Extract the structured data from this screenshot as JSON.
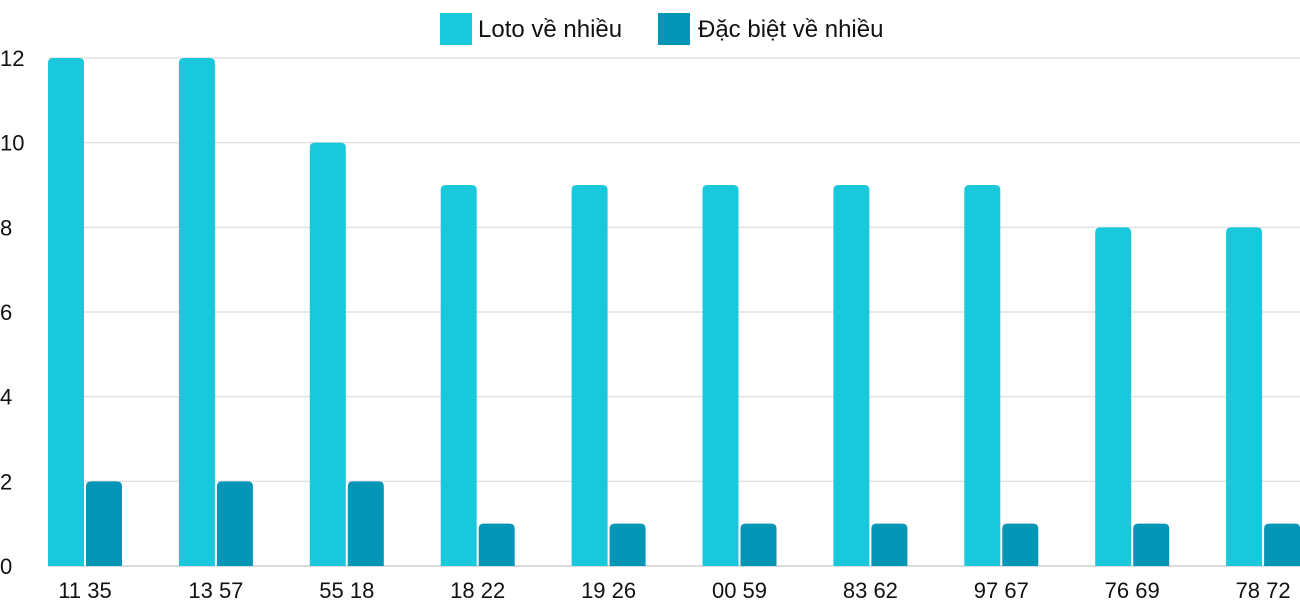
{
  "chart_data": {
    "type": "bar",
    "categories": [
      "11 35",
      "13 57",
      "55 18",
      "18 22",
      "19 26",
      "00 59",
      "83 62",
      "97 67",
      "76 69",
      "78 72"
    ],
    "series": [
      {
        "name": "Loto về nhiều",
        "color": "#1ac8db",
        "values": [
          12,
          12,
          10,
          9,
          9,
          9,
          9,
          9,
          8,
          8
        ]
      },
      {
        "name": "Đặc biệt về nhiều",
        "color": "#0495b7",
        "values": [
          2,
          2,
          2,
          1,
          1,
          1,
          1,
          1,
          1,
          1
        ]
      }
    ],
    "ylim": [
      0,
      12
    ],
    "yticks": [
      0,
      2,
      4,
      6,
      8,
      10,
      12
    ],
    "grid": true,
    "legend": "top-center",
    "title": "",
    "xlabel": "",
    "ylabel": ""
  }
}
